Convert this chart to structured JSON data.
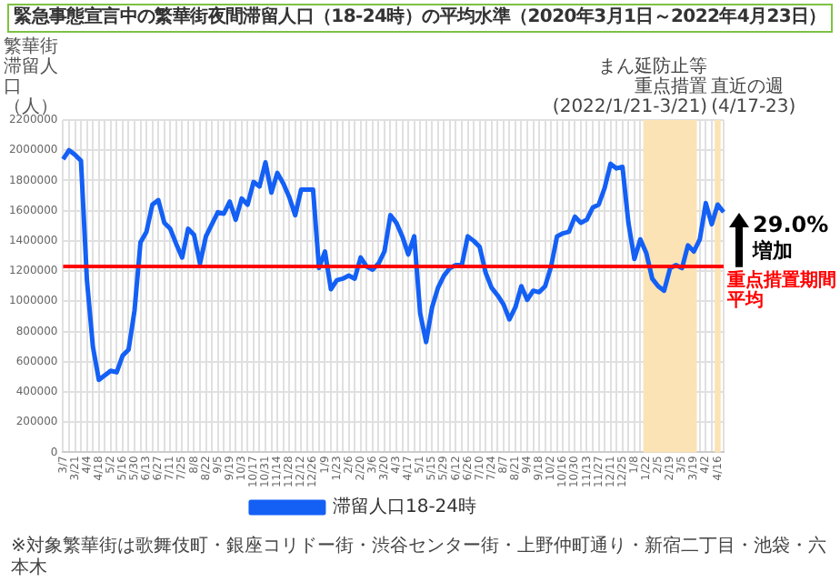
{
  "chart_data": {
    "type": "line",
    "title": "緊急事態宣言中の繁華街夜間滞留人口（18-24時）の平均水準（2020年3月1日～2022年4月23日）",
    "ylabel": "繁華街滞留人口（人）",
    "categories": [
      "3/7",
      null,
      "3/21",
      null,
      "4/4",
      null,
      "4/18",
      null,
      "5/2",
      null,
      "5/16",
      null,
      "5/30",
      null,
      "6/13",
      null,
      "6/27",
      null,
      "7/11",
      null,
      "7/25",
      null,
      "8/8",
      null,
      "8/22",
      null,
      "9/5",
      null,
      "9/19",
      null,
      "10/3",
      null,
      "10/17",
      null,
      "10/31",
      null,
      "11/14",
      null,
      "11/28",
      null,
      "12/12",
      null,
      "12/26",
      null,
      "1/9",
      null,
      "1/23",
      null,
      "2/6",
      null,
      "2/20",
      null,
      "3/6",
      null,
      "3/20",
      null,
      "4/3",
      null,
      "4/17",
      null,
      "5/1",
      null,
      "5/15",
      null,
      "5/29",
      null,
      "6/12",
      null,
      "6/26",
      null,
      "7/10",
      null,
      "7/24",
      null,
      "8/7",
      null,
      "8/21",
      null,
      "9/4",
      null,
      "9/18",
      null,
      "10/2",
      null,
      "10/16",
      null,
      "10/30",
      null,
      "11/13",
      null,
      "11/27",
      null,
      "12/11",
      null,
      "12/25",
      null,
      "1/8",
      null,
      "1/22",
      null,
      "2/5",
      null,
      "2/19",
      null,
      "3/5",
      null,
      "3/19",
      null,
      "4/2",
      null,
      "4/16",
      null
    ],
    "series": [
      {
        "name": "滞留人口18-24時",
        "color": "#1460f5",
        "values": [
          1940000,
          2000000,
          1970000,
          1930000,
          1140000,
          700000,
          480000,
          510000,
          540000,
          530000,
          640000,
          680000,
          940000,
          1390000,
          1460000,
          1640000,
          1670000,
          1520000,
          1480000,
          1380000,
          1290000,
          1480000,
          1440000,
          1250000,
          1430000,
          1510000,
          1590000,
          1580000,
          1660000,
          1540000,
          1680000,
          1640000,
          1790000,
          1760000,
          1920000,
          1720000,
          1850000,
          1780000,
          1690000,
          1570000,
          1740000,
          1740000,
          1740000,
          1220000,
          1330000,
          1080000,
          1140000,
          1150000,
          1170000,
          1150000,
          1290000,
          1230000,
          1210000,
          1250000,
          1330000,
          1570000,
          1520000,
          1430000,
          1310000,
          1430000,
          920000,
          730000,
          960000,
          1090000,
          1170000,
          1220000,
          1240000,
          1240000,
          1430000,
          1400000,
          1360000,
          1190000,
          1090000,
          1040000,
          980000,
          880000,
          960000,
          1100000,
          1010000,
          1070000,
          1060000,
          1100000,
          1230000,
          1430000,
          1450000,
          1460000,
          1560000,
          1520000,
          1540000,
          1620000,
          1640000,
          1750000,
          1910000,
          1880000,
          1890000,
          1520000,
          1280000,
          1410000,
          1320000,
          1150000,
          1100000,
          1070000,
          1220000,
          1240000,
          1220000,
          1370000,
          1330000,
          1410000,
          1650000,
          1510000,
          1640000,
          1590000
        ]
      }
    ],
    "ylim": [
      0,
      2200000
    ],
    "yticks": [
      0,
      200000,
      400000,
      600000,
      800000,
      1000000,
      1200000,
      1400000,
      1600000,
      1800000,
      2000000,
      2200000
    ],
    "ref_lines": [
      {
        "axis": "y",
        "value": 1230000,
        "label": "重点措置期間平均",
        "color": "#ff0000"
      }
    ],
    "bands": [
      {
        "axis": "x",
        "from": "1/22",
        "to": "3/19",
        "label": "まん延防止等重点措置(2022/1/21-3/21)",
        "color": "#fbe3b5"
      },
      {
        "axis": "x",
        "from": "4/16",
        "to": "4/16",
        "label": "直近の週(4/17-23)",
        "color": "#fbe3b5"
      }
    ],
    "annotations": [
      "29.0%増加",
      "※対象繁華街は歌舞伎町・銀座コリドー街・渋谷センター街・上野仲町通り・新宿二丁目・池袋・六本木"
    ],
    "grid": true,
    "legend": "bottom",
    "marker": "none",
    "line_style": "solid"
  }
}
